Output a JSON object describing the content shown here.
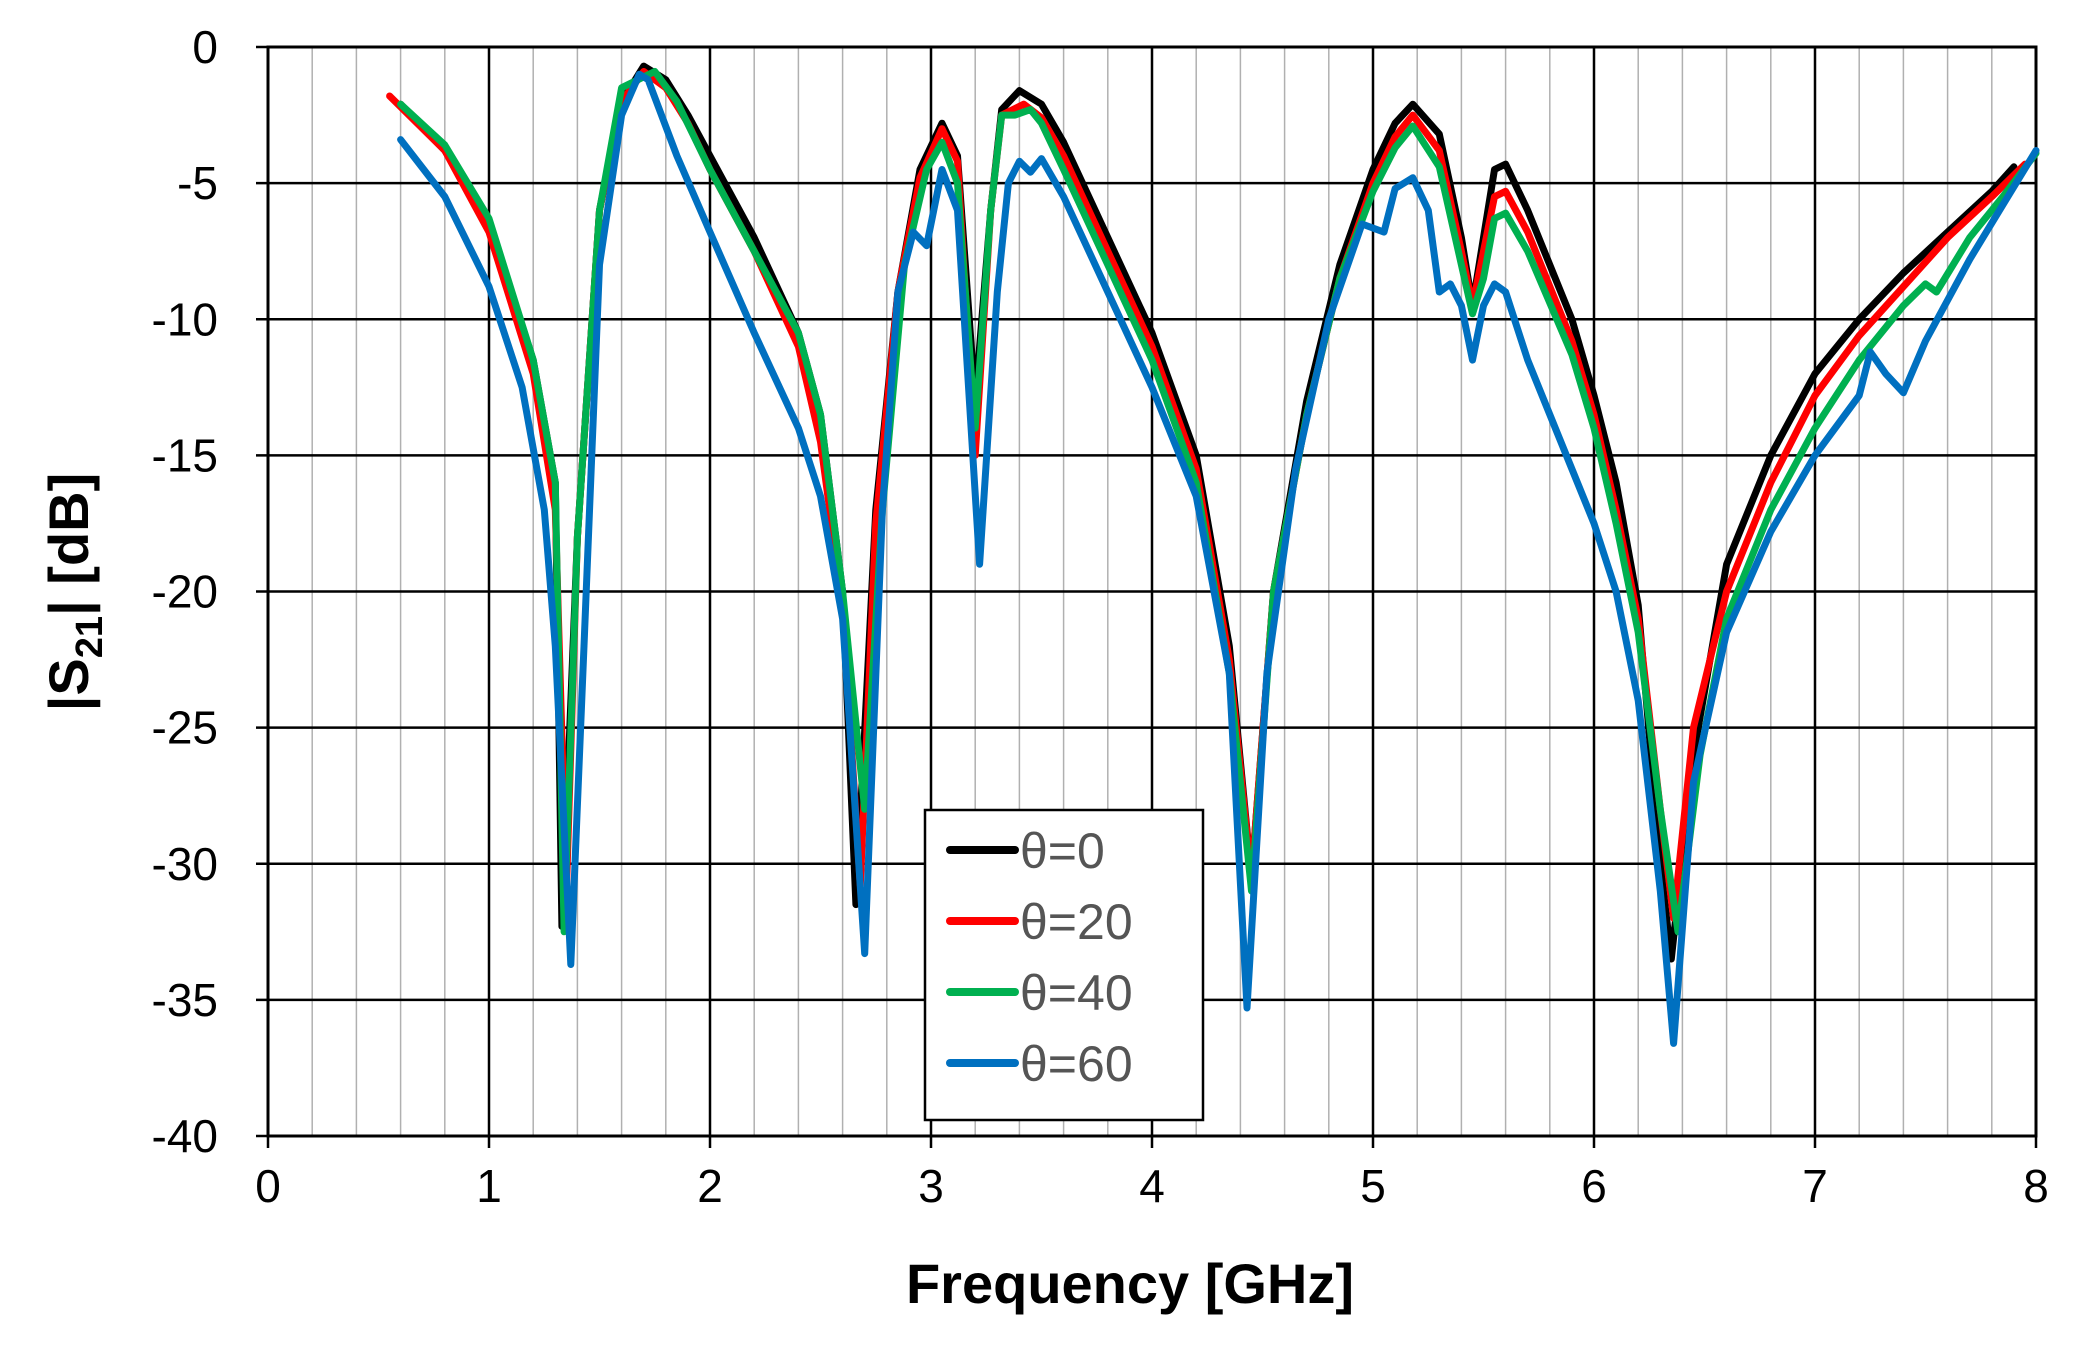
{
  "chart_data": {
    "type": "line",
    "xlabel": "Frequency [GHz]",
    "ylabel_main": "|S",
    "ylabel_sub": "21",
    "ylabel_tail": "| [dB]",
    "xlim": [
      0,
      8
    ],
    "ylim": [
      -40,
      0
    ],
    "x_ticks": [
      "0",
      "1",
      "2",
      "3",
      "4",
      "5",
      "6",
      "7",
      "8"
    ],
    "y_ticks": [
      "0",
      "-5",
      "-10",
      "-15",
      "-20",
      "-25",
      "-30",
      "-35",
      "-40"
    ],
    "x_major_step": 1,
    "x_minor_step": 0.2,
    "y_major_step": 5,
    "grid": true,
    "legend_position": "bottom-center",
    "series": [
      {
        "name": "θ=0",
        "color": "#000000",
        "points": [
          [
            0.6,
            -2.1
          ],
          [
            0.8,
            -3.8
          ],
          [
            1.0,
            -6.5
          ],
          [
            1.2,
            -11.5
          ],
          [
            1.3,
            -16
          ],
          [
            1.33,
            -32.3
          ],
          [
            1.4,
            -18
          ],
          [
            1.5,
            -6
          ],
          [
            1.6,
            -2
          ],
          [
            1.7,
            -0.7
          ],
          [
            1.8,
            -1.2
          ],
          [
            1.9,
            -2.5
          ],
          [
            2.0,
            -4
          ],
          [
            2.2,
            -7
          ],
          [
            2.4,
            -10.5
          ],
          [
            2.5,
            -13.5
          ],
          [
            2.6,
            -20
          ],
          [
            2.66,
            -31.5
          ],
          [
            2.75,
            -17
          ],
          [
            2.85,
            -9
          ],
          [
            2.95,
            -4.5
          ],
          [
            3.05,
            -2.8
          ],
          [
            3.12,
            -4
          ],
          [
            3.2,
            -13
          ],
          [
            3.27,
            -6
          ],
          [
            3.32,
            -2.3
          ],
          [
            3.4,
            -1.6
          ],
          [
            3.5,
            -2.1
          ],
          [
            3.6,
            -3.5
          ],
          [
            3.8,
            -7
          ],
          [
            4.0,
            -10.5
          ],
          [
            4.2,
            -15
          ],
          [
            4.35,
            -22
          ],
          [
            4.45,
            -30.5
          ],
          [
            4.55,
            -20
          ],
          [
            4.7,
            -13
          ],
          [
            4.85,
            -8
          ],
          [
            5.0,
            -4.5
          ],
          [
            5.1,
            -2.8
          ],
          [
            5.18,
            -2.1
          ],
          [
            5.3,
            -3.2
          ],
          [
            5.4,
            -7
          ],
          [
            5.45,
            -9.5
          ],
          [
            5.5,
            -7
          ],
          [
            5.55,
            -4.5
          ],
          [
            5.6,
            -4.3
          ],
          [
            5.7,
            -6
          ],
          [
            5.9,
            -10
          ],
          [
            6.0,
            -12.8
          ],
          [
            6.1,
            -16
          ],
          [
            6.2,
            -20.5
          ],
          [
            6.3,
            -30
          ],
          [
            6.35,
            -33.5
          ],
          [
            6.45,
            -26
          ],
          [
            6.6,
            -19
          ],
          [
            6.8,
            -15
          ],
          [
            7.0,
            -12
          ],
          [
            7.2,
            -10
          ],
          [
            7.4,
            -8.3
          ],
          [
            7.6,
            -6.8
          ],
          [
            7.8,
            -5.3
          ],
          [
            7.9,
            -4.4
          ]
        ]
      },
      {
        "name": "θ=20",
        "color": "#ff0000",
        "points": [
          [
            0.55,
            -1.8
          ],
          [
            0.8,
            -3.8
          ],
          [
            1.0,
            -6.8
          ],
          [
            1.2,
            -12
          ],
          [
            1.3,
            -17
          ],
          [
            1.35,
            -31
          ],
          [
            1.4,
            -18
          ],
          [
            1.5,
            -6
          ],
          [
            1.6,
            -2
          ],
          [
            1.7,
            -0.9
          ],
          [
            1.8,
            -1.5
          ],
          [
            1.9,
            -2.8
          ],
          [
            2.0,
            -4.5
          ],
          [
            2.2,
            -7.5
          ],
          [
            2.4,
            -11
          ],
          [
            2.5,
            -14.5
          ],
          [
            2.6,
            -20.5
          ],
          [
            2.68,
            -30.8
          ],
          [
            2.75,
            -17.5
          ],
          [
            2.85,
            -9
          ],
          [
            2.95,
            -4.8
          ],
          [
            3.05,
            -3
          ],
          [
            3.12,
            -4.2
          ],
          [
            3.2,
            -15
          ],
          [
            3.27,
            -6
          ],
          [
            3.32,
            -2.5
          ],
          [
            3.42,
            -2.1
          ],
          [
            3.5,
            -2.6
          ],
          [
            3.6,
            -4
          ],
          [
            3.8,
            -7.5
          ],
          [
            4.0,
            -11
          ],
          [
            4.2,
            -15.5
          ],
          [
            4.35,
            -22.5
          ],
          [
            4.45,
            -30.5
          ],
          [
            4.55,
            -20
          ],
          [
            4.7,
            -13.5
          ],
          [
            4.85,
            -8.5
          ],
          [
            5.0,
            -5
          ],
          [
            5.1,
            -3.3
          ],
          [
            5.18,
            -2.5
          ],
          [
            5.3,
            -3.8
          ],
          [
            5.4,
            -7.5
          ],
          [
            5.45,
            -9.5
          ],
          [
            5.5,
            -7.5
          ],
          [
            5.55,
            -5.5
          ],
          [
            5.6,
            -5.3
          ],
          [
            5.7,
            -6.8
          ],
          [
            5.9,
            -10.8
          ],
          [
            6.0,
            -13.5
          ],
          [
            6.1,
            -17
          ],
          [
            6.2,
            -21
          ],
          [
            6.3,
            -28
          ],
          [
            6.36,
            -32
          ],
          [
            6.45,
            -25
          ],
          [
            6.6,
            -20
          ],
          [
            6.8,
            -16
          ],
          [
            7.0,
            -12.8
          ],
          [
            7.2,
            -10.6
          ],
          [
            7.4,
            -8.8
          ],
          [
            7.6,
            -7
          ],
          [
            7.8,
            -5.5
          ],
          [
            7.95,
            -4.3
          ]
        ]
      },
      {
        "name": "θ=40",
        "color": "#00b050",
        "points": [
          [
            0.6,
            -2.1
          ],
          [
            0.8,
            -3.6
          ],
          [
            1.0,
            -6.3
          ],
          [
            1.2,
            -11.5
          ],
          [
            1.3,
            -16
          ],
          [
            1.34,
            -32.5
          ],
          [
            1.4,
            -18
          ],
          [
            1.5,
            -6
          ],
          [
            1.6,
            -1.5
          ],
          [
            1.7,
            -1.1
          ],
          [
            1.75,
            -0.9
          ],
          [
            1.85,
            -2
          ],
          [
            2.0,
            -4.5
          ],
          [
            2.2,
            -7.5
          ],
          [
            2.4,
            -10.5
          ],
          [
            2.5,
            -13.5
          ],
          [
            2.6,
            -20
          ],
          [
            2.7,
            -28
          ],
          [
            2.78,
            -17
          ],
          [
            2.88,
            -8
          ],
          [
            2.98,
            -4.5
          ],
          [
            3.05,
            -3.5
          ],
          [
            3.12,
            -5
          ],
          [
            3.2,
            -14
          ],
          [
            3.27,
            -6
          ],
          [
            3.32,
            -2.5
          ],
          [
            3.38,
            -2.5
          ],
          [
            3.45,
            -2.3
          ],
          [
            3.5,
            -2.8
          ],
          [
            3.6,
            -4.5
          ],
          [
            3.8,
            -8
          ],
          [
            4.0,
            -11.5
          ],
          [
            4.2,
            -16
          ],
          [
            4.35,
            -23
          ],
          [
            4.45,
            -31
          ],
          [
            4.55,
            -20
          ],
          [
            4.7,
            -13.5
          ],
          [
            4.85,
            -8.5
          ],
          [
            5.0,
            -5.3
          ],
          [
            5.1,
            -3.7
          ],
          [
            5.18,
            -2.9
          ],
          [
            5.3,
            -4.4
          ],
          [
            5.4,
            -8
          ],
          [
            5.45,
            -9.8
          ],
          [
            5.5,
            -8.5
          ],
          [
            5.55,
            -6.3
          ],
          [
            5.6,
            -6.1
          ],
          [
            5.7,
            -7.5
          ],
          [
            5.9,
            -11.3
          ],
          [
            6.0,
            -14
          ],
          [
            6.1,
            -17.5
          ],
          [
            6.2,
            -21.5
          ],
          [
            6.3,
            -28
          ],
          [
            6.38,
            -32.5
          ],
          [
            6.48,
            -26
          ],
          [
            6.6,
            -21
          ],
          [
            6.8,
            -17
          ],
          [
            7.0,
            -14
          ],
          [
            7.2,
            -11.5
          ],
          [
            7.4,
            -9.5
          ],
          [
            7.5,
            -8.7
          ],
          [
            7.55,
            -9
          ],
          [
            7.7,
            -7
          ],
          [
            7.85,
            -5.5
          ],
          [
            8.0,
            -3.9
          ]
        ]
      },
      {
        "name": "θ=60",
        "color": "#0070c0",
        "points": [
          [
            0.6,
            -3.4
          ],
          [
            0.8,
            -5.5
          ],
          [
            1.0,
            -8.8
          ],
          [
            1.15,
            -12.5
          ],
          [
            1.25,
            -17
          ],
          [
            1.3,
            -22
          ],
          [
            1.37,
            -33.7
          ],
          [
            1.43,
            -22
          ],
          [
            1.5,
            -8
          ],
          [
            1.6,
            -2.5
          ],
          [
            1.68,
            -1
          ],
          [
            1.72,
            -1.2
          ],
          [
            1.85,
            -4
          ],
          [
            2.0,
            -6.8
          ],
          [
            2.2,
            -10.5
          ],
          [
            2.4,
            -14
          ],
          [
            2.5,
            -16.5
          ],
          [
            2.6,
            -21
          ],
          [
            2.7,
            -33.3
          ],
          [
            2.78,
            -17
          ],
          [
            2.85,
            -9
          ],
          [
            2.92,
            -6.8
          ],
          [
            2.98,
            -7.3
          ],
          [
            3.05,
            -4.5
          ],
          [
            3.12,
            -6
          ],
          [
            3.22,
            -19
          ],
          [
            3.3,
            -9
          ],
          [
            3.35,
            -5
          ],
          [
            3.4,
            -4.2
          ],
          [
            3.45,
            -4.6
          ],
          [
            3.5,
            -4.1
          ],
          [
            3.6,
            -5.5
          ],
          [
            3.8,
            -9
          ],
          [
            4.0,
            -12.5
          ],
          [
            4.2,
            -16.5
          ],
          [
            4.35,
            -23
          ],
          [
            4.43,
            -35.3
          ],
          [
            4.52,
            -23
          ],
          [
            4.65,
            -15.5
          ],
          [
            4.8,
            -10
          ],
          [
            4.95,
            -6.5
          ],
          [
            5.05,
            -6.8
          ],
          [
            5.1,
            -5.2
          ],
          [
            5.18,
            -4.8
          ],
          [
            5.25,
            -6
          ],
          [
            5.3,
            -9
          ],
          [
            5.35,
            -8.7
          ],
          [
            5.4,
            -9.5
          ],
          [
            5.45,
            -11.5
          ],
          [
            5.5,
            -9.5
          ],
          [
            5.55,
            -8.7
          ],
          [
            5.6,
            -9
          ],
          [
            5.7,
            -11.5
          ],
          [
            5.9,
            -15.5
          ],
          [
            6.0,
            -17.5
          ],
          [
            6.1,
            -20
          ],
          [
            6.2,
            -24
          ],
          [
            6.3,
            -31
          ],
          [
            6.36,
            -36.6
          ],
          [
            6.45,
            -27
          ],
          [
            6.6,
            -21.5
          ],
          [
            6.8,
            -17.8
          ],
          [
            7.0,
            -15
          ],
          [
            7.2,
            -12.8
          ],
          [
            7.25,
            -11.2
          ],
          [
            7.32,
            -12
          ],
          [
            7.4,
            -12.7
          ],
          [
            7.5,
            -10.8
          ],
          [
            7.7,
            -7.8
          ],
          [
            7.85,
            -5.8
          ],
          [
            8.0,
            -3.8
          ]
        ]
      }
    ]
  }
}
